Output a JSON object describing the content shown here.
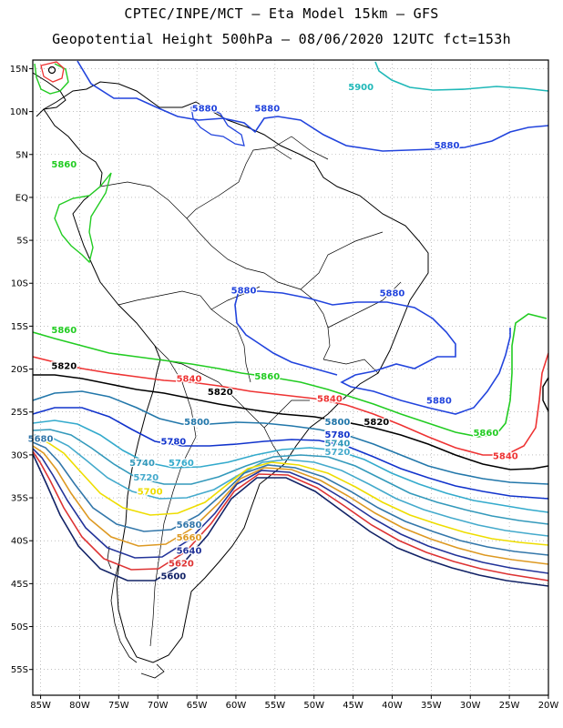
{
  "title_line1": "CPTEC/INPE/MCT –  Eta Model 15km – GFS",
  "title_line2": "Geopotential Height 500hPa – 08/06/2020 12UTC fct=153h",
  "lat_labels": [
    "15N",
    "10N",
    "5N",
    "EQ",
    "5S",
    "10S",
    "15S",
    "20S",
    "25S",
    "30S",
    "35S",
    "40S",
    "45S",
    "50S",
    "55S"
  ],
  "lon_labels": [
    "85W",
    "80W",
    "75W",
    "70W",
    "65W",
    "60W",
    "55W",
    "50W",
    "45W",
    "40W",
    "35W",
    "30W",
    "25W",
    "20W"
  ],
  "map": {
    "lon_range": [
      -86,
      -20
    ],
    "lat_range": [
      16,
      -58
    ],
    "grid": "dotted"
  },
  "contours": [
    {
      "value": "5900",
      "color": "#1fb8b8",
      "labels": [
        {
          "lon": -44,
          "lat": 12.5,
          "text": "5900"
        }
      ]
    },
    {
      "value": "5880",
      "color": "#2244dd",
      "labels": [
        {
          "lon": -64,
          "lat": 10.0,
          "text": "5880"
        },
        {
          "lon": -56,
          "lat": 10.0,
          "text": "5880"
        },
        {
          "lon": -33,
          "lat": 5.7,
          "text": "5880"
        },
        {
          "lon": -59,
          "lat": -11.2,
          "text": "5880"
        },
        {
          "lon": -40,
          "lat": -11.5,
          "text": "5880"
        },
        {
          "lon": -34,
          "lat": -24.0,
          "text": "5880"
        }
      ]
    },
    {
      "value": "5860",
      "color": "#22cc22",
      "labels": [
        {
          "lon": -82,
          "lat": 3.5,
          "text": "5860"
        },
        {
          "lon": -82,
          "lat": -15.8,
          "text": "5860"
        },
        {
          "lon": -56,
          "lat": -21.2,
          "text": "5860"
        },
        {
          "lon": -28,
          "lat": -27.8,
          "text": "5860"
        }
      ]
    },
    {
      "value": "5840",
      "color": "#ee3333",
      "labels": [
        {
          "lon": -66,
          "lat": -21.5,
          "text": "5840"
        },
        {
          "lon": -48,
          "lat": -23.8,
          "text": "5840"
        },
        {
          "lon": -25.5,
          "lat": -30.5,
          "text": "5840"
        }
      ]
    },
    {
      "value": "5820",
      "color": "#000000",
      "labels": [
        {
          "lon": -82,
          "lat": -20.0,
          "text": "5820"
        },
        {
          "lon": -62,
          "lat": -23.0,
          "text": "5820"
        },
        {
          "lon": -42,
          "lat": -26.5,
          "text": "5820"
        }
      ]
    },
    {
      "value": "5800",
      "color": "#2277aa",
      "labels": [
        {
          "lon": -65,
          "lat": -26.5,
          "text": "5800"
        },
        {
          "lon": -47,
          "lat": -26.5,
          "text": "5800"
        }
      ]
    },
    {
      "value": "5780",
      "color": "#1133cc",
      "labels": [
        {
          "lon": -68,
          "lat": -28.8,
          "text": "5780"
        },
        {
          "lon": -47,
          "lat": -28.0,
          "text": "5780"
        }
      ]
    },
    {
      "value": "5760",
      "color": "#33aacc",
      "labels": [
        {
          "lon": -67,
          "lat": -31.3,
          "text": "5760"
        }
      ]
    },
    {
      "value": "5740",
      "color": "#3399bb",
      "labels": [
        {
          "lon": -72,
          "lat": -31.3,
          "text": "5740"
        },
        {
          "lon": -47,
          "lat": -29.0,
          "text": "5740"
        }
      ]
    },
    {
      "value": "5720",
      "color": "#44aacc",
      "labels": [
        {
          "lon": -71.5,
          "lat": -33.0,
          "text": "5720"
        },
        {
          "lon": -47,
          "lat": -30.0,
          "text": "5720"
        }
      ]
    },
    {
      "value": "5700",
      "color": "#eedd00",
      "labels": [
        {
          "lon": -71,
          "lat": -34.6,
          "text": "5700"
        }
      ]
    },
    {
      "value": "5680",
      "color": "#3377aa",
      "labels": [
        {
          "lon": -85,
          "lat": -28.5,
          "text": "5680"
        },
        {
          "lon": -66,
          "lat": -38.5,
          "text": "5680"
        }
      ]
    },
    {
      "value": "5660",
      "color": "#dd9922",
      "labels": [
        {
          "lon": -66,
          "lat": -40.0,
          "text": "5660"
        }
      ]
    },
    {
      "value": "5640",
      "color": "#223399",
      "labels": [
        {
          "lon": -66,
          "lat": -41.5,
          "text": "5640"
        }
      ]
    },
    {
      "value": "5620",
      "color": "#dd3333",
      "labels": [
        {
          "lon": -67,
          "lat": -43.0,
          "text": "5620"
        }
      ]
    },
    {
      "value": "5600",
      "color": "#112266",
      "labels": [
        {
          "lon": -68,
          "lat": -44.5,
          "text": "5600"
        }
      ]
    }
  ]
}
